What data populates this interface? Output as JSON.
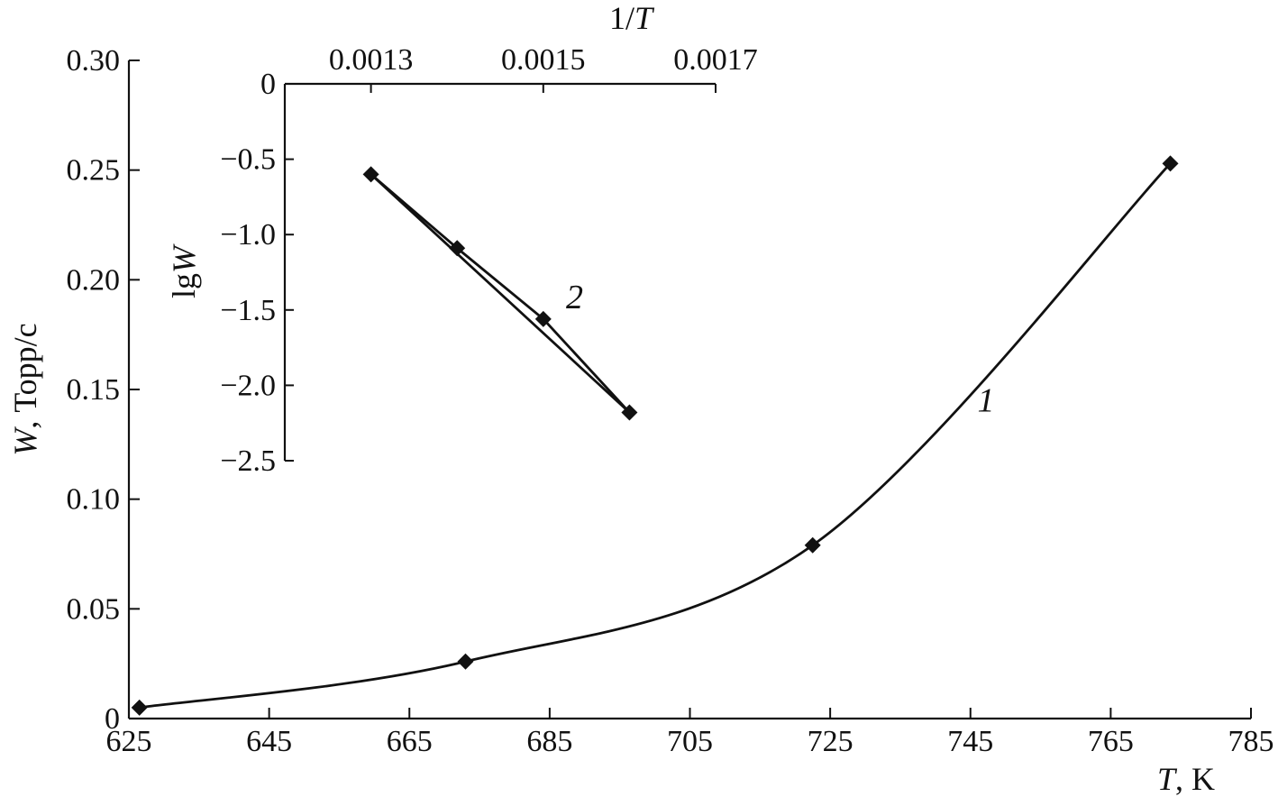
{
  "chart_data": [
    {
      "type": "line",
      "xlabel_var": "T",
      "xlabel_unit": ", K",
      "ylabel_var": "W",
      "ylabel_unit": ", Торр/с",
      "xlim": [
        625,
        785
      ],
      "ylim": [
        0,
        0.3
      ],
      "xticks": [
        625,
        645,
        665,
        685,
        705,
        725,
        745,
        765,
        785
      ],
      "xtick_labels": [
        "625",
        "645",
        "665",
        "685",
        "705",
        "725",
        "745",
        "765",
        "785"
      ],
      "yticks": [
        0,
        0.05,
        0.1,
        0.15,
        0.2,
        0.25,
        0.3
      ],
      "ytick_labels": [
        "0",
        "0.05",
        "0.10",
        "0.15",
        "0.20",
        "0.25",
        "0.30"
      ],
      "series": [
        {
          "label": "1",
          "x": [
            626.5,
            673.0,
            722.5,
            773.5
          ],
          "y": [
            0.005,
            0.026,
            0.079,
            0.253
          ]
        }
      ]
    },
    {
      "type": "line",
      "inset": true,
      "xlabel": "1/T",
      "ylabel_prefix": "lg",
      "ylabel_var": "W",
      "xlim": [
        0.0012,
        0.0017
      ],
      "ylim": [
        -2.5,
        0
      ],
      "xticks": [
        0.0013,
        0.0015,
        0.0017
      ],
      "xtick_labels": [
        "0.0013",
        "0.0015",
        "0.0017"
      ],
      "yticks": [
        0,
        -0.5,
        -1.0,
        -1.5,
        -2.0,
        -2.5
      ],
      "ytick_labels": [
        "0",
        "−0.5",
        "−1.0",
        "−1.5",
        "−2.0",
        "−2.5"
      ],
      "series": [
        {
          "label": "2",
          "x": [
            0.0013,
            0.0014,
            0.0015,
            0.0016
          ],
          "y": [
            -0.6,
            -1.09,
            -1.56,
            -2.18
          ]
        }
      ]
    }
  ]
}
